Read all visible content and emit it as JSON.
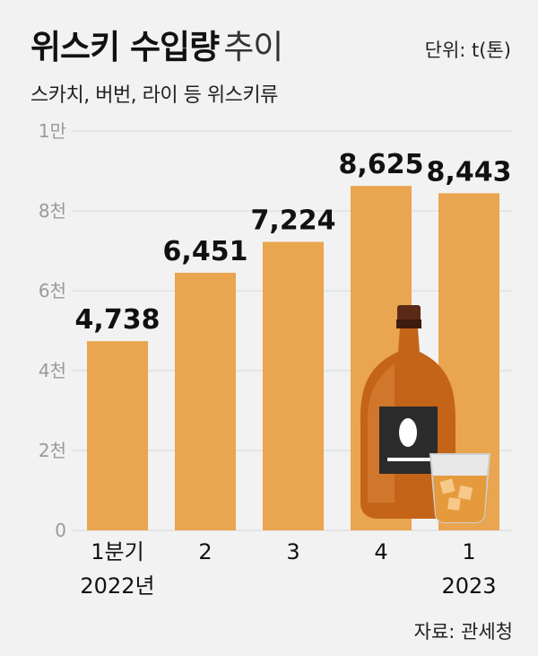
{
  "header": {
    "title_bold": "위스키 수입량",
    "title_light": "추이",
    "unit": "단위: t(톤)",
    "subtitle": "스카치, 버번, 라이 등 위스키류"
  },
  "footer": {
    "source": "자료: 관세청"
  },
  "colors": {
    "bar": "#e9a54f",
    "grid": "#d8d8d8",
    "background": "#f2f2f2"
  },
  "chart_data": {
    "type": "bar",
    "categories": [
      "1분기",
      "2",
      "3",
      "4",
      "1"
    ],
    "category_years": [
      "2022년",
      "",
      "",
      "",
      "2023"
    ],
    "values": [
      4738,
      6451,
      7224,
      8625,
      8443
    ],
    "value_labels": [
      "4,738",
      "6,451",
      "7,224",
      "8,625",
      "8,443"
    ],
    "yticks": [
      {
        "value": 0,
        "label": "0"
      },
      {
        "value": 2000,
        "label": "2천"
      },
      {
        "value": 4000,
        "label": "4천"
      },
      {
        "value": 6000,
        "label": "6천"
      },
      {
        "value": 8000,
        "label": "8천"
      },
      {
        "value": 10000,
        "label": "1만"
      }
    ],
    "ylim": [
      0,
      10000
    ],
    "grid": true,
    "decoration": [
      "whisky-bottle-icon",
      "whisky-glass-icon"
    ]
  }
}
